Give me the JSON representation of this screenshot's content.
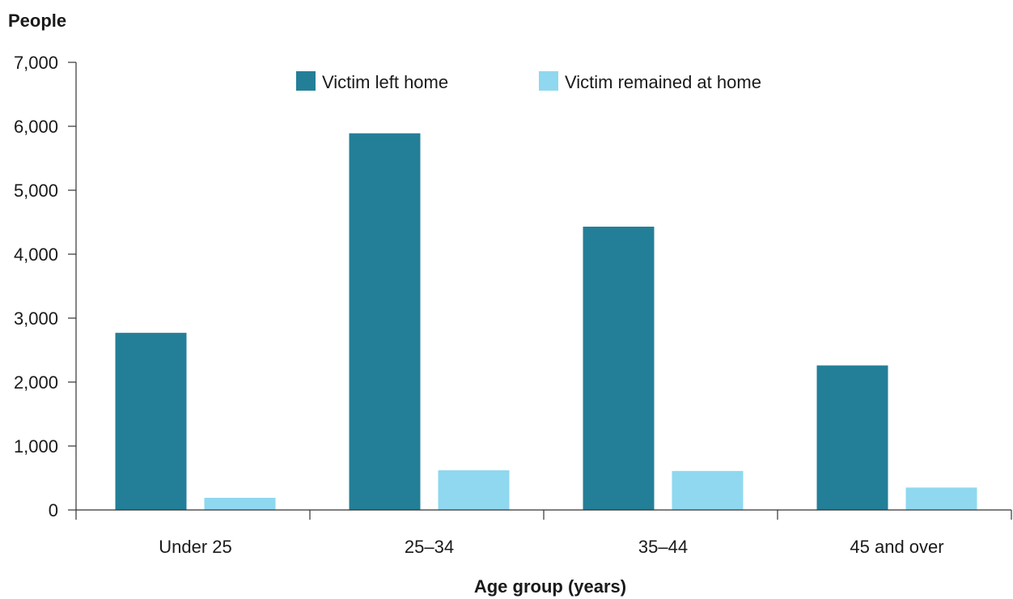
{
  "chart_data": {
    "type": "bar",
    "title": "",
    "ylabel": "People",
    "xlabel": "Age group (years)",
    "categories": [
      "Under 25",
      "25–34",
      "35–44",
      "45 and over"
    ],
    "series": [
      {
        "name": "Victim left home",
        "color": "#237f97",
        "values": [
          2770,
          5890,
          4430,
          2260
        ]
      },
      {
        "name": "Victim remained at home",
        "color": "#8fd8ef",
        "values": [
          190,
          620,
          610,
          350
        ]
      }
    ],
    "ylim": [
      0,
      7000
    ],
    "yticks": [
      0,
      1000,
      2000,
      3000,
      4000,
      5000,
      6000,
      7000
    ],
    "ytick_labels": [
      "0",
      "1,000",
      "2,000",
      "3,000",
      "4,000",
      "5,000",
      "6,000",
      "7,000"
    ],
    "grid": false,
    "legend_position": "top"
  }
}
